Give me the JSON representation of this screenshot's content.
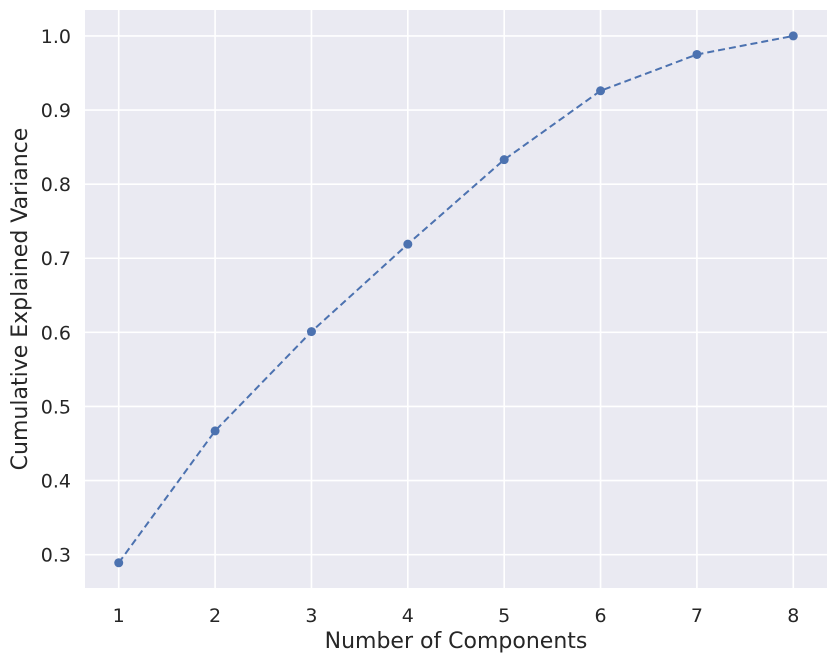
{
  "chart_data": {
    "type": "line",
    "xlabel": "Number of Components",
    "ylabel": "Cumulative Explained Variance",
    "x": [
      1,
      2,
      3,
      4,
      5,
      6,
      7,
      8
    ],
    "series": [
      {
        "values": [
          0.289,
          0.467,
          0.601,
          0.719,
          0.833,
          0.926,
          0.975,
          1.0
        ],
        "color": "#4c72b0",
        "line_style": "dashed",
        "marker": "circle"
      }
    ],
    "xlim": [
      0.65,
      8.35
    ],
    "ylim": [
      0.255,
      1.035
    ],
    "x_ticks": [
      "1",
      "2",
      "3",
      "4",
      "5",
      "6",
      "7",
      "8"
    ],
    "y_ticks": [
      "0.3",
      "0.4",
      "0.5",
      "0.6",
      "0.7",
      "0.8",
      "0.9",
      "1.0"
    ],
    "grid": true,
    "style": {
      "background": "#eaeaf2",
      "grid_color": "#ffffff"
    }
  }
}
